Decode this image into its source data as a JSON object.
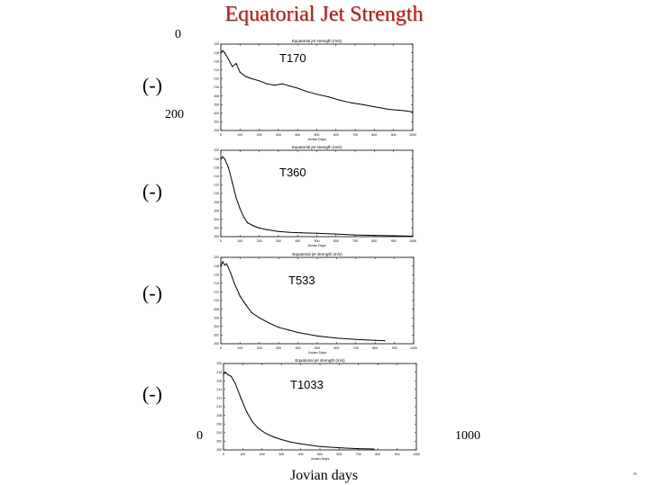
{
  "slide": {
    "title": "Equatorial Jet Strength",
    "paren_marks": [
      "(-)",
      "(-)",
      "(-)",
      "(-)"
    ],
    "left_top_value": "0",
    "left_mid_value": "200",
    "bottom_left_value": "0",
    "bottom_right_value": "1000",
    "bottom_label": "Jovian days",
    "corner_mark": "''"
  },
  "colors": {
    "title": "#b01c1c",
    "line": "#000000"
  },
  "chart_data": [
    {
      "type": "line",
      "title": "Equatorial jet strength (m/s)",
      "annotation": "T170",
      "xlabel": "Jovian Days",
      "xlim": [
        0,
        1000
      ],
      "ylim": [
        200,
        220
      ],
      "x": [
        0,
        10,
        20,
        40,
        60,
        80,
        100,
        130,
        160,
        200,
        240,
        280,
        320,
        360,
        400,
        450,
        500,
        560,
        620,
        680,
        740,
        800,
        860,
        900,
        950,
        1000
      ],
      "y": [
        218.0,
        218.5,
        218.0,
        216.5,
        214.8,
        215.5,
        213.5,
        212.5,
        212.0,
        211.5,
        210.8,
        210.5,
        210.8,
        210.3,
        209.8,
        209.0,
        208.4,
        207.8,
        207.0,
        206.4,
        206.0,
        205.5,
        205.0,
        204.8,
        204.6,
        204.3
      ]
    },
    {
      "type": "line",
      "title": "Equatorial jet strength (m/s)",
      "annotation": "T360",
      "xlabel": "Jovian Days",
      "xlim": [
        0,
        1000
      ],
      "ylim": [
        200,
        220
      ],
      "x": [
        0,
        10,
        20,
        40,
        60,
        80,
        100,
        120,
        140,
        170,
        200,
        240,
        300,
        360,
        420,
        500,
        600,
        700,
        800,
        900,
        1000
      ],
      "y": [
        218.0,
        218.5,
        218.0,
        216.0,
        212.5,
        209.0,
        206.5,
        204.5,
        203.2,
        202.5,
        202.0,
        201.6,
        201.2,
        201.0,
        200.9,
        200.8,
        200.6,
        200.4,
        200.3,
        200.2,
        200.1
      ]
    },
    {
      "type": "line",
      "title": "Equatorial jet strength (m/s)",
      "annotation": "T533",
      "xlabel": "Jovian Days",
      "xlim": [
        0,
        1000
      ],
      "ylim": [
        200,
        220
      ],
      "x": [
        0,
        10,
        20,
        30,
        50,
        70,
        100,
        130,
        160,
        200,
        250,
        300,
        350,
        400,
        500,
        600,
        700,
        800,
        850
      ],
      "y": [
        218.0,
        219.0,
        218.2,
        218.5,
        216.5,
        214.0,
        211.0,
        209.0,
        207.2,
        206.0,
        204.8,
        203.8,
        203.2,
        202.6,
        201.8,
        201.3,
        201.0,
        200.8,
        200.7
      ]
    },
    {
      "type": "line",
      "title": "Equatorial jet strength (m/s)",
      "annotation": "T1033",
      "xlabel": "Jovian Days",
      "xlim": [
        0,
        1000
      ],
      "ylim": [
        200,
        220
      ],
      "x": [
        0,
        10,
        20,
        40,
        60,
        90,
        120,
        150,
        180,
        220,
        260,
        300,
        350,
        400,
        500,
        600,
        700,
        780
      ],
      "y": [
        217.5,
        218.0,
        217.5,
        217.0,
        215.5,
        212.0,
        208.8,
        206.5,
        205.0,
        203.8,
        203.0,
        202.4,
        201.8,
        201.4,
        200.8,
        200.5,
        200.3,
        200.2
      ]
    }
  ]
}
